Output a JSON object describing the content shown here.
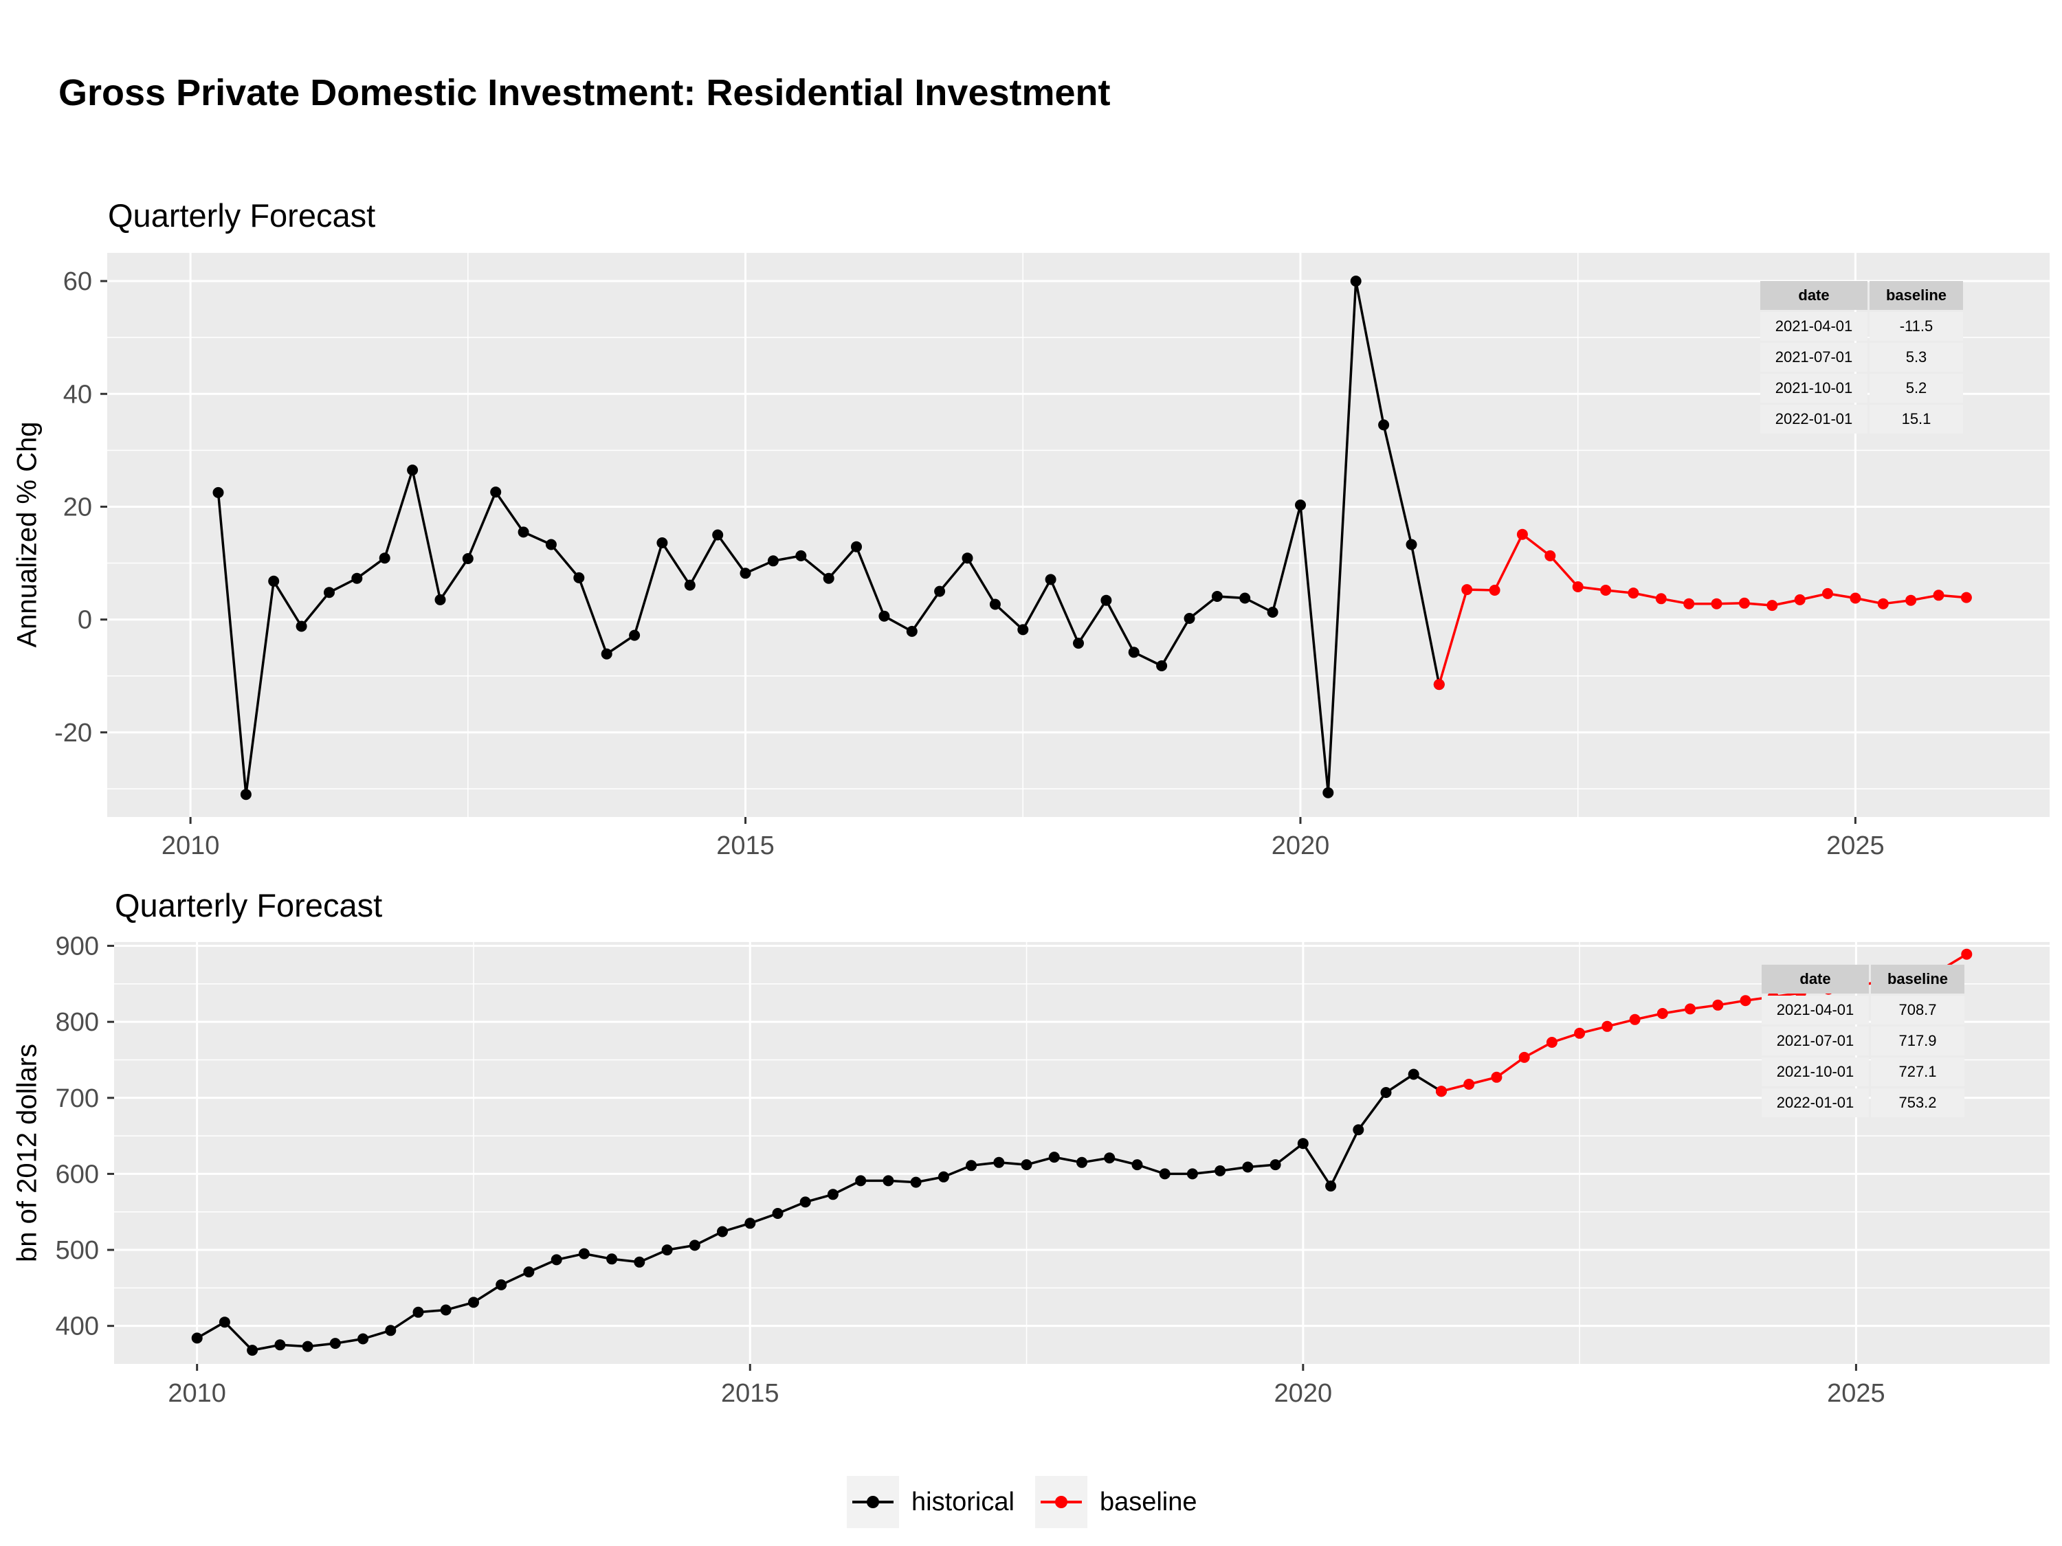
{
  "title": "Gross Private Domestic Investment: Residential Investment",
  "colors": {
    "historical": "#000000",
    "baseline": "#ff0000",
    "panel": "#ebebeb",
    "grid": "#ffffff"
  },
  "legend": [
    {
      "label": "historical",
      "color": "#000000"
    },
    {
      "label": "baseline",
      "color": "#ff0000"
    }
  ],
  "chart_data": [
    {
      "type": "line",
      "title": "Quarterly Forecast",
      "xlabel": "",
      "ylabel": "Annualized % Chg",
      "xlim": [
        "2009-04-01",
        "2026-10-01"
      ],
      "ylim": [
        -35,
        65
      ],
      "x_ticks": [
        "2010",
        "2015",
        "2020",
        "2025"
      ],
      "y_ticks": [
        -20,
        0,
        20,
        40,
        60
      ],
      "grid": true,
      "legend_position": "bottom",
      "series": [
        {
          "name": "historical",
          "color": "#000000",
          "x": [
            "2010-04-01",
            "2010-07-01",
            "2010-10-01",
            "2011-01-01",
            "2011-04-01",
            "2011-07-01",
            "2011-10-01",
            "2012-01-01",
            "2012-04-01",
            "2012-07-01",
            "2012-10-01",
            "2013-01-01",
            "2013-04-01",
            "2013-07-01",
            "2013-10-01",
            "2014-01-01",
            "2014-04-01",
            "2014-07-01",
            "2014-10-01",
            "2015-01-01",
            "2015-04-01",
            "2015-07-01",
            "2015-10-01",
            "2016-01-01",
            "2016-04-01",
            "2016-07-01",
            "2016-10-01",
            "2017-01-01",
            "2017-04-01",
            "2017-07-01",
            "2017-10-01",
            "2018-01-01",
            "2018-04-01",
            "2018-07-01",
            "2018-10-01",
            "2019-01-01",
            "2019-04-01",
            "2019-07-01",
            "2019-10-01",
            "2020-01-01",
            "2020-04-01",
            "2020-07-01",
            "2020-10-01",
            "2021-01-01",
            "2021-04-01"
          ],
          "y": [
            22.5,
            -31,
            6.8,
            -1.2,
            4.8,
            7.3,
            10.9,
            26.5,
            3.5,
            10.8,
            22.6,
            15.5,
            13.3,
            7.4,
            -6.1,
            -2.8,
            13.6,
            6.1,
            15,
            8.2,
            10.4,
            11.3,
            7.3,
            12.9,
            0.6,
            -2.1,
            5,
            10.9,
            2.7,
            -1.8,
            7.1,
            -4.2,
            3.4,
            -5.8,
            -8.2,
            0.2,
            4.1,
            3.8,
            1.3,
            20.3,
            -30.7,
            60,
            34.5,
            13.3,
            -11.5
          ]
        },
        {
          "name": "baseline",
          "color": "#ff0000",
          "x": [
            "2021-04-01",
            "2021-07-01",
            "2021-10-01",
            "2022-01-01",
            "2022-04-01",
            "2022-07-01",
            "2022-10-01",
            "2023-01-01",
            "2023-04-01",
            "2023-07-01",
            "2023-10-01",
            "2024-01-01",
            "2024-04-01",
            "2024-07-01",
            "2024-10-01",
            "2025-01-01",
            "2025-04-01",
            "2025-07-01",
            "2025-10-01",
            "2026-01-01"
          ],
          "y": [
            -11.5,
            5.3,
            5.2,
            15.1,
            11.3,
            5.8,
            5.2,
            4.7,
            3.7,
            2.8,
            2.8,
            2.9,
            2.5,
            3.5,
            4.6,
            3.8,
            2.8,
            3.4,
            4.3,
            3.9
          ]
        }
      ],
      "table": {
        "columns": [
          "date",
          "baseline"
        ],
        "rows": [
          [
            "2021-04-01",
            "-11.5"
          ],
          [
            "2021-07-01",
            "5.3"
          ],
          [
            "2021-10-01",
            "5.2"
          ],
          [
            "2022-01-01",
            "15.1"
          ]
        ]
      }
    },
    {
      "type": "line",
      "title": "Quarterly Forecast",
      "xlabel": "",
      "ylabel": "bn of 2012 dollars",
      "xlim": [
        "2009-04-01",
        "2026-10-01"
      ],
      "ylim": [
        350,
        905
      ],
      "x_ticks": [
        "2010",
        "2015",
        "2020",
        "2025"
      ],
      "y_ticks": [
        400,
        500,
        600,
        700,
        800,
        900
      ],
      "grid": true,
      "legend_position": "bottom",
      "series": [
        {
          "name": "historical",
          "color": "#000000",
          "x": [
            "2010-01-01",
            "2010-04-01",
            "2010-07-01",
            "2010-10-01",
            "2011-01-01",
            "2011-04-01",
            "2011-07-01",
            "2011-10-01",
            "2012-01-01",
            "2012-04-01",
            "2012-07-01",
            "2012-10-01",
            "2013-01-01",
            "2013-04-01",
            "2013-07-01",
            "2013-10-01",
            "2014-01-01",
            "2014-04-01",
            "2014-07-01",
            "2014-10-01",
            "2015-01-01",
            "2015-04-01",
            "2015-07-01",
            "2015-10-01",
            "2016-01-01",
            "2016-04-01",
            "2016-07-01",
            "2016-10-01",
            "2017-01-01",
            "2017-04-01",
            "2017-07-01",
            "2017-10-01",
            "2018-01-01",
            "2018-04-01",
            "2018-07-01",
            "2018-10-01",
            "2019-01-01",
            "2019-04-01",
            "2019-07-01",
            "2019-10-01",
            "2020-01-01",
            "2020-04-01",
            "2020-07-01",
            "2020-10-01",
            "2021-01-01",
            "2021-04-01"
          ],
          "y": [
            384,
            405,
            368,
            375,
            373,
            377,
            383,
            394,
            418,
            421,
            431,
            454,
            471,
            487,
            495,
            488,
            484,
            500,
            506,
            524,
            535,
            548,
            563,
            573,
            591,
            591,
            589,
            596,
            611,
            615,
            612,
            622,
            615,
            621,
            612,
            600,
            600,
            604,
            609,
            612,
            640,
            584,
            658,
            707,
            731,
            708.7
          ]
        },
        {
          "name": "baseline",
          "color": "#ff0000",
          "x": [
            "2021-04-01",
            "2021-07-01",
            "2021-10-01",
            "2022-01-01",
            "2022-04-01",
            "2022-07-01",
            "2022-10-01",
            "2023-01-01",
            "2023-04-01",
            "2023-07-01",
            "2023-10-01",
            "2024-01-01",
            "2024-04-01",
            "2024-07-01",
            "2024-10-01",
            "2025-01-01",
            "2025-04-01",
            "2025-07-01",
            "2025-10-01",
            "2026-01-01"
          ],
          "y": [
            708.7,
            717.9,
            727.1,
            753.2,
            773,
            785,
            794,
            803,
            811,
            817,
            822,
            828,
            833,
            838,
            843,
            848,
            853,
            859,
            867,
            889
          ]
        }
      ],
      "table": {
        "columns": [
          "date",
          "baseline"
        ],
        "rows": [
          [
            "2021-04-01",
            "708.7"
          ],
          [
            "2021-07-01",
            "717.9"
          ],
          [
            "2021-10-01",
            "727.1"
          ],
          [
            "2022-01-01",
            "753.2"
          ]
        ]
      }
    }
  ]
}
